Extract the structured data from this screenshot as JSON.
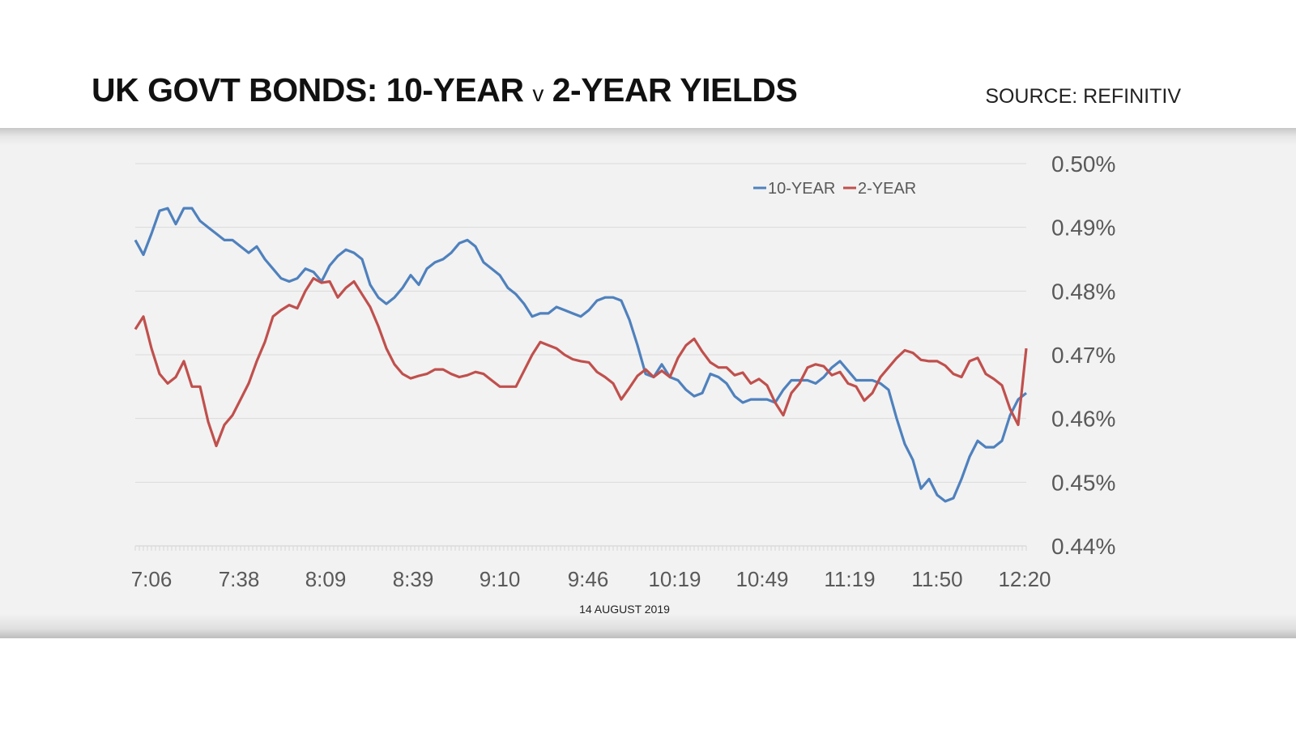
{
  "header": {
    "title_part1": "UK GOVT BONDS: 10-YEAR ",
    "title_v": "v",
    "title_part2": " 2-YEAR YIELDS",
    "source": "SOURCE: REFINITIV"
  },
  "chart_data": {
    "type": "line",
    "title": "UK GOVT BONDS: 10-YEAR v 2-YEAR YIELDS",
    "xlabel": "14 AUGUST 2019",
    "ylabel": "",
    "x_tick_labels": [
      "7:06",
      "7:38",
      "8:09",
      "8:39",
      "9:10",
      "9:46",
      "10:19",
      "10:49",
      "11:19",
      "11:50",
      "12:20"
    ],
    "y_tick_labels": [
      "0.50%",
      "0.49%",
      "0.48%",
      "0.47%",
      "0.46%",
      "0.45%",
      "0.44%"
    ],
    "ylim": [
      0.44,
      0.5
    ],
    "y_unit": "%",
    "grid": "horizontal",
    "legend_position": "top",
    "series": [
      {
        "name": "10-YEAR",
        "color": "#4f81bd",
        "values": [
          0.488,
          0.4857,
          0.489,
          0.4926,
          0.493,
          0.4905,
          0.493,
          0.493,
          0.491,
          0.49,
          0.489,
          0.488,
          0.488,
          0.487,
          0.486,
          0.487,
          0.485,
          0.4835,
          0.482,
          0.4815,
          0.482,
          0.4835,
          0.483,
          0.4815,
          0.484,
          0.4855,
          0.4865,
          0.486,
          0.485,
          0.481,
          0.479,
          0.478,
          0.479,
          0.4805,
          0.4825,
          0.481,
          0.4835,
          0.4845,
          0.485,
          0.486,
          0.4875,
          0.488,
          0.487,
          0.4845,
          0.4835,
          0.4825,
          0.4805,
          0.4795,
          0.478,
          0.476,
          0.4765,
          0.4765,
          0.4775,
          0.477,
          0.4765,
          0.476,
          0.477,
          0.4785,
          0.479,
          0.479,
          0.4785,
          0.4755,
          0.4715,
          0.467,
          0.4665,
          0.4685,
          0.4665,
          0.466,
          0.4645,
          0.4635,
          0.464,
          0.467,
          0.4665,
          0.4655,
          0.4635,
          0.4625,
          0.463,
          0.463,
          0.463,
          0.4625,
          0.4645,
          0.466,
          0.466,
          0.466,
          0.4655,
          0.4665,
          0.468,
          0.469,
          0.4675,
          0.466,
          0.466,
          0.466,
          0.4655,
          0.4645,
          0.46,
          0.456,
          0.4535,
          0.449,
          0.4505,
          0.448,
          0.447,
          0.4475,
          0.4505,
          0.454,
          0.4565,
          0.4555,
          0.4555,
          0.4565,
          0.4605,
          0.463,
          0.464
        ]
      },
      {
        "name": "2-YEAR",
        "color": "#c0504d",
        "values": [
          0.474,
          0.476,
          0.471,
          0.467,
          0.4655,
          0.4665,
          0.469,
          0.465,
          0.465,
          0.4595,
          0.4557,
          0.459,
          0.4605,
          0.463,
          0.4655,
          0.469,
          0.472,
          0.476,
          0.477,
          0.4778,
          0.4773,
          0.48,
          0.482,
          0.4813,
          0.4815,
          0.479,
          0.4805,
          0.4815,
          0.4795,
          0.4775,
          0.4745,
          0.471,
          0.4685,
          0.467,
          0.4663,
          0.4667,
          0.467,
          0.4677,
          0.4677,
          0.467,
          0.4665,
          0.4668,
          0.4673,
          0.467,
          0.466,
          0.465,
          0.465,
          0.465,
          0.4675,
          0.47,
          0.472,
          0.4715,
          0.471,
          0.47,
          0.4693,
          0.469,
          0.4688,
          0.4673,
          0.4665,
          0.4655,
          0.463,
          0.4648,
          0.4667,
          0.4677,
          0.4665,
          0.4675,
          0.4665,
          0.4695,
          0.4715,
          0.4725,
          0.4705,
          0.4688,
          0.468,
          0.468,
          0.4668,
          0.4672,
          0.4655,
          0.4662,
          0.4652,
          0.4625,
          0.4605,
          0.464,
          0.4655,
          0.468,
          0.4685,
          0.4682,
          0.4668,
          0.4673,
          0.4655,
          0.465,
          0.4628,
          0.464,
          0.4665,
          0.468,
          0.4695,
          0.4707,
          0.4703,
          0.4692,
          0.469,
          0.469,
          0.4683,
          0.467,
          0.4665,
          0.469,
          0.4695,
          0.467,
          0.4662,
          0.4652,
          0.4615,
          0.459,
          0.471
        ]
      }
    ]
  }
}
